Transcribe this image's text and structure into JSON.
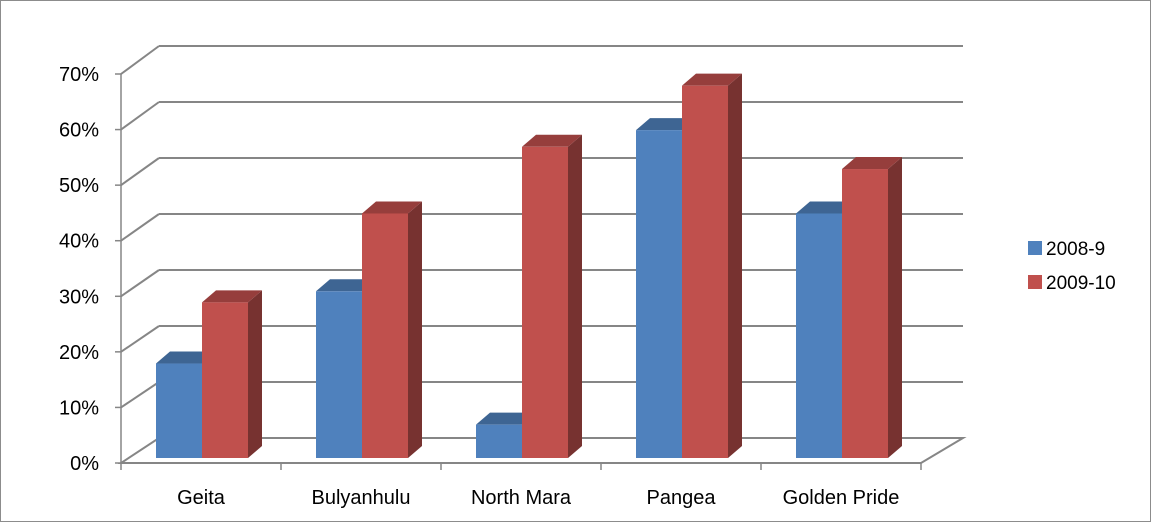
{
  "chart_data": {
    "type": "bar",
    "title": "",
    "xlabel": "",
    "ylabel": "",
    "categories": [
      "Geita",
      "Bulyanhulu",
      "North Mara",
      "Pangea",
      "Golden Pride"
    ],
    "series": [
      {
        "name": "2008-9",
        "color": "#4f81bd",
        "values": [
          17,
          30,
          6,
          59,
          44
        ]
      },
      {
        "name": "2009-10",
        "color": "#c0504d",
        "values": [
          28,
          44,
          56,
          67,
          52
        ]
      }
    ],
    "ylim": [
      0,
      70
    ],
    "yticks": [
      "0%",
      "10%",
      "20%",
      "30%",
      "40%",
      "50%",
      "60%",
      "70%"
    ],
    "grid": true,
    "legend_position": "right",
    "style": "3d-clustered-column"
  }
}
